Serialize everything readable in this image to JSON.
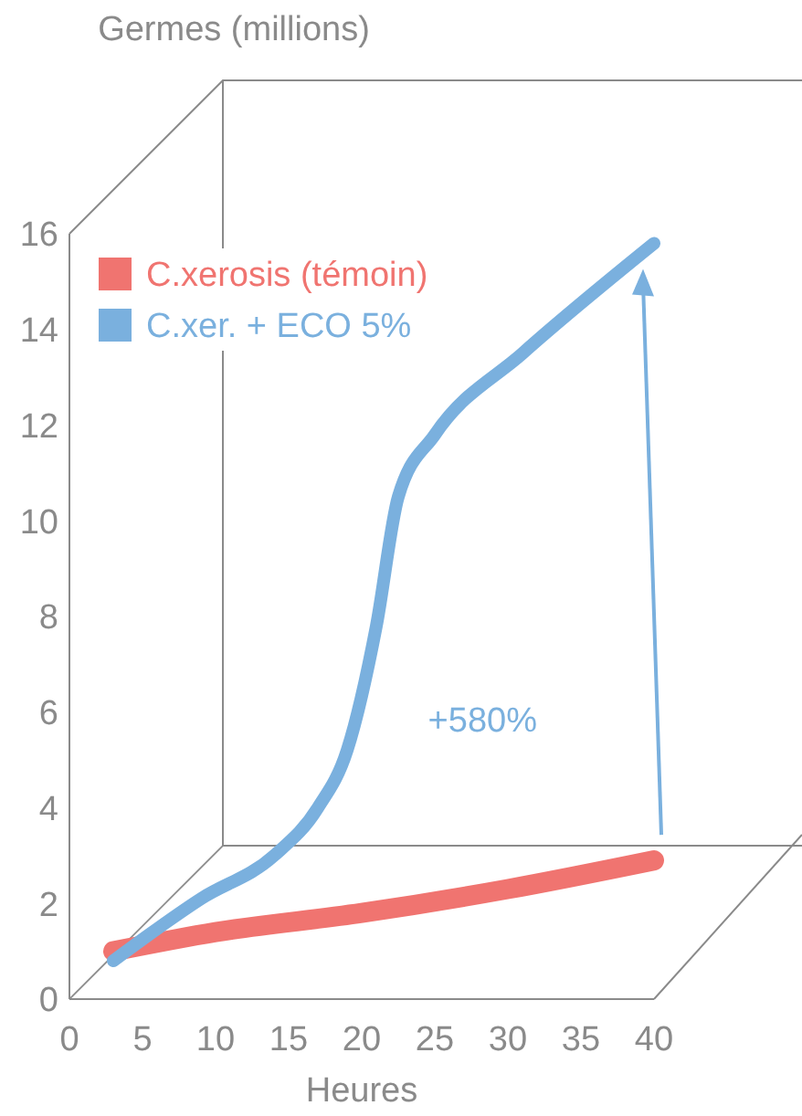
{
  "chart_data": {
    "type": "line",
    "xlabel": "Heures",
    "ylabel": "Germes (millions)",
    "xlim": [
      0,
      40
    ],
    "xticks": [
      0,
      5,
      10,
      15,
      20,
      25,
      30,
      35,
      40
    ],
    "ylim": [
      0,
      16
    ],
    "yticks": [
      0,
      2,
      4,
      6,
      8,
      10,
      12,
      14,
      16
    ],
    "series": [
      {
        "name": "C.xerosis (témoin)",
        "color": "#f07470",
        "x": [
          3,
          10,
          20,
          30,
          40
        ],
        "values": [
          1.0,
          1.4,
          1.8,
          2.3,
          2.9
        ]
      },
      {
        "name": "C.xer. + ECO 5%",
        "color": "#7ab0de",
        "x": [
          3,
          9,
          14,
          17,
          19,
          21,
          22.5,
          25,
          31,
          40
        ],
        "values": [
          0.8,
          2.1,
          3.0,
          4.0,
          5.2,
          7.8,
          10.5,
          11.8,
          13.5,
          15.8
        ]
      }
    ],
    "annotations": [
      "+580%"
    ],
    "legend": "top left",
    "grid": false,
    "marker": "none",
    "line_style": "solid"
  }
}
